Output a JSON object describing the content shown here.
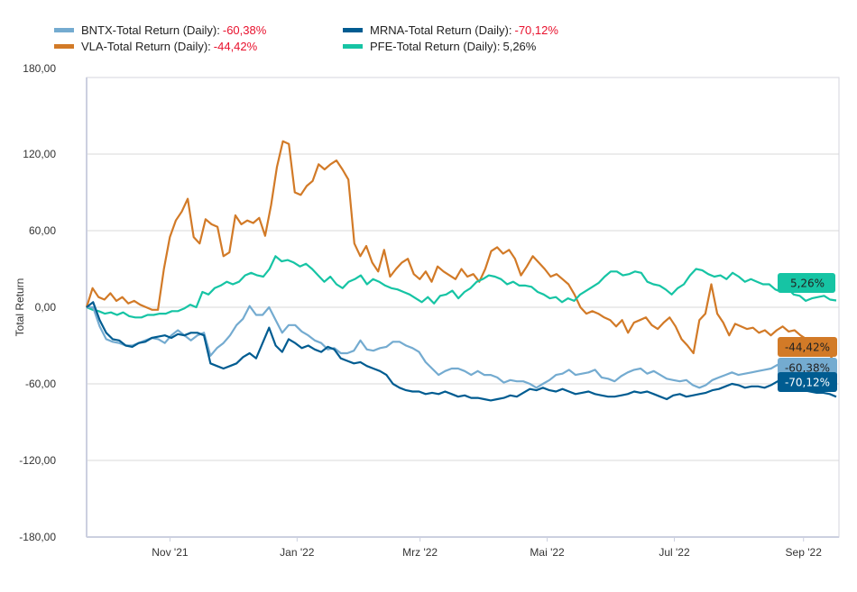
{
  "chart_data": {
    "type": "line",
    "title": "",
    "xlabel": "",
    "ylabel": "Total Return",
    "ylim": [
      -180,
      180
    ],
    "yticks": [
      "180,00",
      "120,00",
      "60,00",
      "0,00",
      "-60,00",
      "-120,00",
      "-180,00"
    ],
    "ytick_values": [
      180,
      120,
      60,
      0,
      -60,
      -120,
      -180
    ],
    "xticks": [
      "Nov '21",
      "Jan '22",
      "Mrz '22",
      "Mai '22",
      "Jul '22",
      "Sep '22"
    ],
    "xtick_dates": [
      "2021-11-01",
      "2022-01-01",
      "2022-03-01",
      "2022-05-01",
      "2022-07-01",
      "2022-09-01"
    ],
    "x_start": "2021-09-22",
    "x_end": "2022-09-18",
    "grid": true,
    "legend_position": "top-left",
    "series": [
      {
        "name": "BNTX-Total Return (Daily)",
        "final_value": "-60,38%",
        "color": "#74abd0",
        "values": [
          0,
          0,
          -15,
          -25,
          -27,
          -28,
          -30,
          -30,
          -28,
          -26,
          -24,
          -25,
          -28,
          -22,
          -18,
          -22,
          -26,
          -22,
          -20,
          -38,
          -32,
          -28,
          -22,
          -14,
          -9,
          1,
          -6,
          -6,
          0,
          -10,
          -20,
          -14,
          -14,
          -19,
          -22,
          -26,
          -28,
          -33,
          -32,
          -36,
          -36,
          -34,
          -26,
          -33,
          -34,
          -32,
          -31,
          -27,
          -27,
          -30,
          -32,
          -35,
          -43,
          -48,
          -53,
          -50,
          -48,
          -48,
          -50,
          -53,
          -50,
          -53,
          -53,
          -55,
          -59,
          -57,
          -58,
          -58,
          -60,
          -63,
          -60,
          -57,
          -53,
          -52,
          -49,
          -53,
          -52,
          -51,
          -49,
          -55,
          -56,
          -58,
          -54,
          -51,
          -49,
          -48,
          -52,
          -50,
          -53,
          -56,
          -57,
          -58,
          -57,
          -61,
          -63,
          -61,
          -57,
          -55,
          -53,
          -51,
          -53,
          -52,
          -51,
          -50,
          -49,
          -48,
          -45,
          -48,
          -51,
          -52,
          -53,
          -56,
          -55,
          -57,
          -60,
          -60.38
        ]
      },
      {
        "name": "MRNA-Total Return (Daily)",
        "final_value": "-70,12%",
        "color": "#005c91",
        "values": [
          0,
          4,
          -10,
          -20,
          -25,
          -26,
          -30,
          -31,
          -28,
          -27,
          -24,
          -23,
          -22,
          -24,
          -21,
          -22,
          -20,
          -20,
          -22,
          -44,
          -46,
          -48,
          -46,
          -44,
          -39,
          -36,
          -40,
          -28,
          -16,
          -30,
          -35,
          -25,
          -28,
          -32,
          -30,
          -33,
          -35,
          -31,
          -33,
          -40,
          -42,
          -44,
          -43,
          -46,
          -48,
          -50,
          -53,
          -60,
          -63,
          -65,
          -66,
          -66,
          -68,
          -67,
          -68,
          -66,
          -68,
          -70,
          -69,
          -71,
          -71,
          -72,
          -73,
          -72,
          -71,
          -69,
          -70,
          -67,
          -64,
          -65,
          -63,
          -65,
          -66,
          -64,
          -66,
          -68,
          -67,
          -66,
          -68,
          -69,
          -70,
          -70,
          -69,
          -68,
          -66,
          -67,
          -66,
          -68,
          -70,
          -72,
          -69,
          -68,
          -70,
          -69,
          -68,
          -67,
          -65,
          -64,
          -62,
          -60,
          -61,
          -63,
          -62,
          -62,
          -63,
          -61,
          -58,
          -60,
          -63,
          -64,
          -65,
          -66,
          -67,
          -67,
          -68,
          -70.12
        ]
      },
      {
        "name": "VLA-Total Return (Daily)",
        "final_value": "-44,42%",
        "color": "#d27a27",
        "values": [
          0,
          15,
          8,
          6,
          11,
          5,
          8,
          3,
          5,
          2,
          0,
          -2,
          -2,
          30,
          55,
          68,
          75,
          85,
          55,
          50,
          69,
          65,
          63,
          40,
          43,
          72,
          65,
          68,
          66,
          70,
          56,
          80,
          110,
          130,
          128,
          90,
          88,
          95,
          99,
          112,
          108,
          112,
          115,
          108,
          100,
          50,
          40,
          48,
          35,
          28,
          45,
          24,
          30,
          35,
          38,
          26,
          22,
          28,
          20,
          32,
          28,
          25,
          22,
          30,
          24,
          26,
          20,
          30,
          44,
          47,
          42,
          45,
          38,
          25,
          32,
          40,
          35,
          30,
          24,
          26,
          22,
          18,
          10,
          0,
          -5,
          -3,
          -5,
          -8,
          -10,
          -15,
          -10,
          -20,
          -12,
          -10,
          -8,
          -14,
          -17,
          -12,
          -8,
          -15,
          -25,
          -30,
          -36,
          -10,
          -5,
          18,
          -5,
          -12,
          -22,
          -13,
          -15,
          -17,
          -16,
          -20,
          -18,
          -22,
          -18,
          -15,
          -19,
          -18,
          -22,
          -25,
          -28,
          -30,
          -32,
          -38,
          -44.42
        ]
      },
      {
        "name": "PFE-Total Return (Daily)",
        "final_value": "5,26%",
        "color": "#16c4a4",
        "values": [
          0,
          -2,
          -3,
          -5,
          -4,
          -6,
          -4,
          -7,
          -8,
          -8,
          -6,
          -6,
          -5,
          -5,
          -3,
          -3,
          -1,
          2,
          0,
          12,
          10,
          15,
          17,
          20,
          18,
          20,
          25,
          27,
          25,
          24,
          30,
          40,
          36,
          37,
          35,
          32,
          34,
          30,
          25,
          20,
          24,
          18,
          15,
          20,
          22,
          25,
          18,
          22,
          20,
          17,
          15,
          14,
          12,
          10,
          7,
          4,
          8,
          3,
          9,
          10,
          13,
          7,
          12,
          15,
          20,
          22,
          25,
          24,
          22,
          18,
          20,
          17,
          17,
          16,
          12,
          10,
          7,
          8,
          4,
          7,
          5,
          10,
          13,
          16,
          19,
          24,
          28,
          28,
          25,
          26,
          28,
          27,
          20,
          18,
          17,
          14,
          10,
          15,
          18,
          25,
          30,
          29,
          26,
          24,
          25,
          22,
          27,
          24,
          20,
          22,
          20,
          18,
          18,
          14,
          12,
          15,
          10,
          9,
          5,
          7,
          8,
          9,
          6,
          5.26
        ]
      }
    ]
  },
  "legend": [
    {
      "label": "BNTX-Total Return (Daily):",
      "value": "-60,38%"
    },
    {
      "label": "MRNA-Total Return (Daily):",
      "value": "-70,12%"
    },
    {
      "label": "VLA-Total Return (Daily):",
      "value": "-44,42%"
    },
    {
      "label": "PFE-Total Return (Daily):",
      "value": "5,26%"
    }
  ]
}
